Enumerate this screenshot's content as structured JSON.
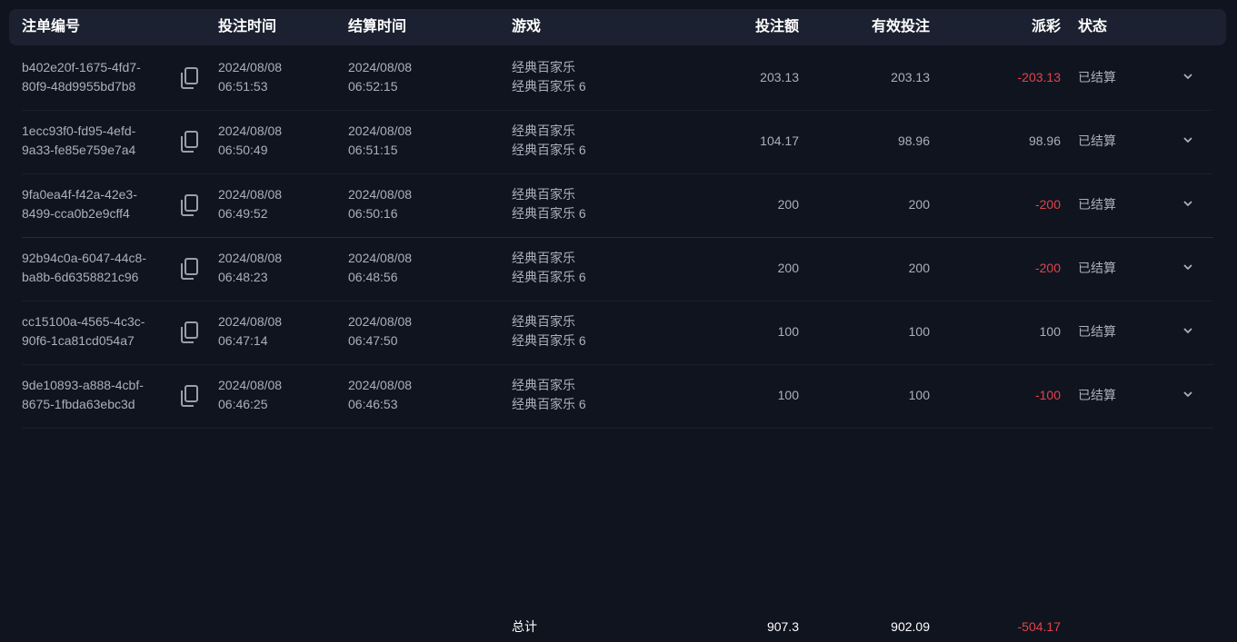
{
  "columns": {
    "id": "注单编号",
    "bet_time": "投注时间",
    "settle_time": "结算时间",
    "game": "游戏",
    "bet_amount": "投注额",
    "valid_bet": "有效投注",
    "payout": "派彩",
    "status": "状态"
  },
  "colors": {
    "background": "#10141f",
    "header": "#1b2130",
    "negative": "#e0434b",
    "text": "#aab0bd"
  },
  "icons": {
    "copy": "copy-icon",
    "expand": "chevron-down-icon"
  },
  "rows": [
    {
      "id1": "b402e20f-1675-4fd7-",
      "id2": "80f9-48d9955bd7b8",
      "bet_date": "2024/08/08",
      "bet_clock": "06:51:53",
      "settle_date": "2024/08/08",
      "settle_clock": "06:52:15",
      "game1": "经典百家乐",
      "game2": "经典百家乐 6",
      "bet_amount": "203.13",
      "valid_bet": "203.13",
      "payout": "-203.13",
      "status": "已结算"
    },
    {
      "id1": "1ecc93f0-fd95-4efd-",
      "id2": "9a33-fe85e759e7a4",
      "bet_date": "2024/08/08",
      "bet_clock": "06:50:49",
      "settle_date": "2024/08/08",
      "settle_clock": "06:51:15",
      "game1": "经典百家乐",
      "game2": "经典百家乐 6",
      "bet_amount": "104.17",
      "valid_bet": "98.96",
      "payout": "98.96",
      "status": "已结算"
    },
    {
      "id1": "9fa0ea4f-f42a-42e3-",
      "id2": "8499-cca0b2e9cff4",
      "bet_date": "2024/08/08",
      "bet_clock": "06:49:52",
      "settle_date": "2024/08/08",
      "settle_clock": "06:50:16",
      "game1": "经典百家乐",
      "game2": "经典百家乐 6",
      "bet_amount": "200",
      "valid_bet": "200",
      "payout": "-200",
      "status": "已结算"
    },
    {
      "id1": "92b94c0a-6047-44c8-",
      "id2": "ba8b-6d6358821c96",
      "bet_date": "2024/08/08",
      "bet_clock": "06:48:23",
      "settle_date": "2024/08/08",
      "settle_clock": "06:48:56",
      "game1": "经典百家乐",
      "game2": "经典百家乐 6",
      "bet_amount": "200",
      "valid_bet": "200",
      "payout": "-200",
      "status": "已结算"
    },
    {
      "id1": "cc15100a-4565-4c3c-",
      "id2": "90f6-1ca81cd054a7",
      "bet_date": "2024/08/08",
      "bet_clock": "06:47:14",
      "settle_date": "2024/08/08",
      "settle_clock": "06:47:50",
      "game1": "经典百家乐",
      "game2": "经典百家乐 6",
      "bet_amount": "100",
      "valid_bet": "100",
      "payout": "100",
      "status": "已结算"
    },
    {
      "id1": "9de10893-a888-4cbf-",
      "id2": "8675-1fbda63ebc3d",
      "bet_date": "2024/08/08",
      "bet_clock": "06:46:25",
      "settle_date": "2024/08/08",
      "settle_clock": "06:46:53",
      "game1": "经典百家乐",
      "game2": "经典百家乐 6",
      "bet_amount": "100",
      "valid_bet": "100",
      "payout": "-100",
      "status": "已结算"
    }
  ],
  "total": {
    "label": "总计",
    "bet_amount": "907.3",
    "valid_bet": "902.09",
    "payout": "-504.17"
  }
}
